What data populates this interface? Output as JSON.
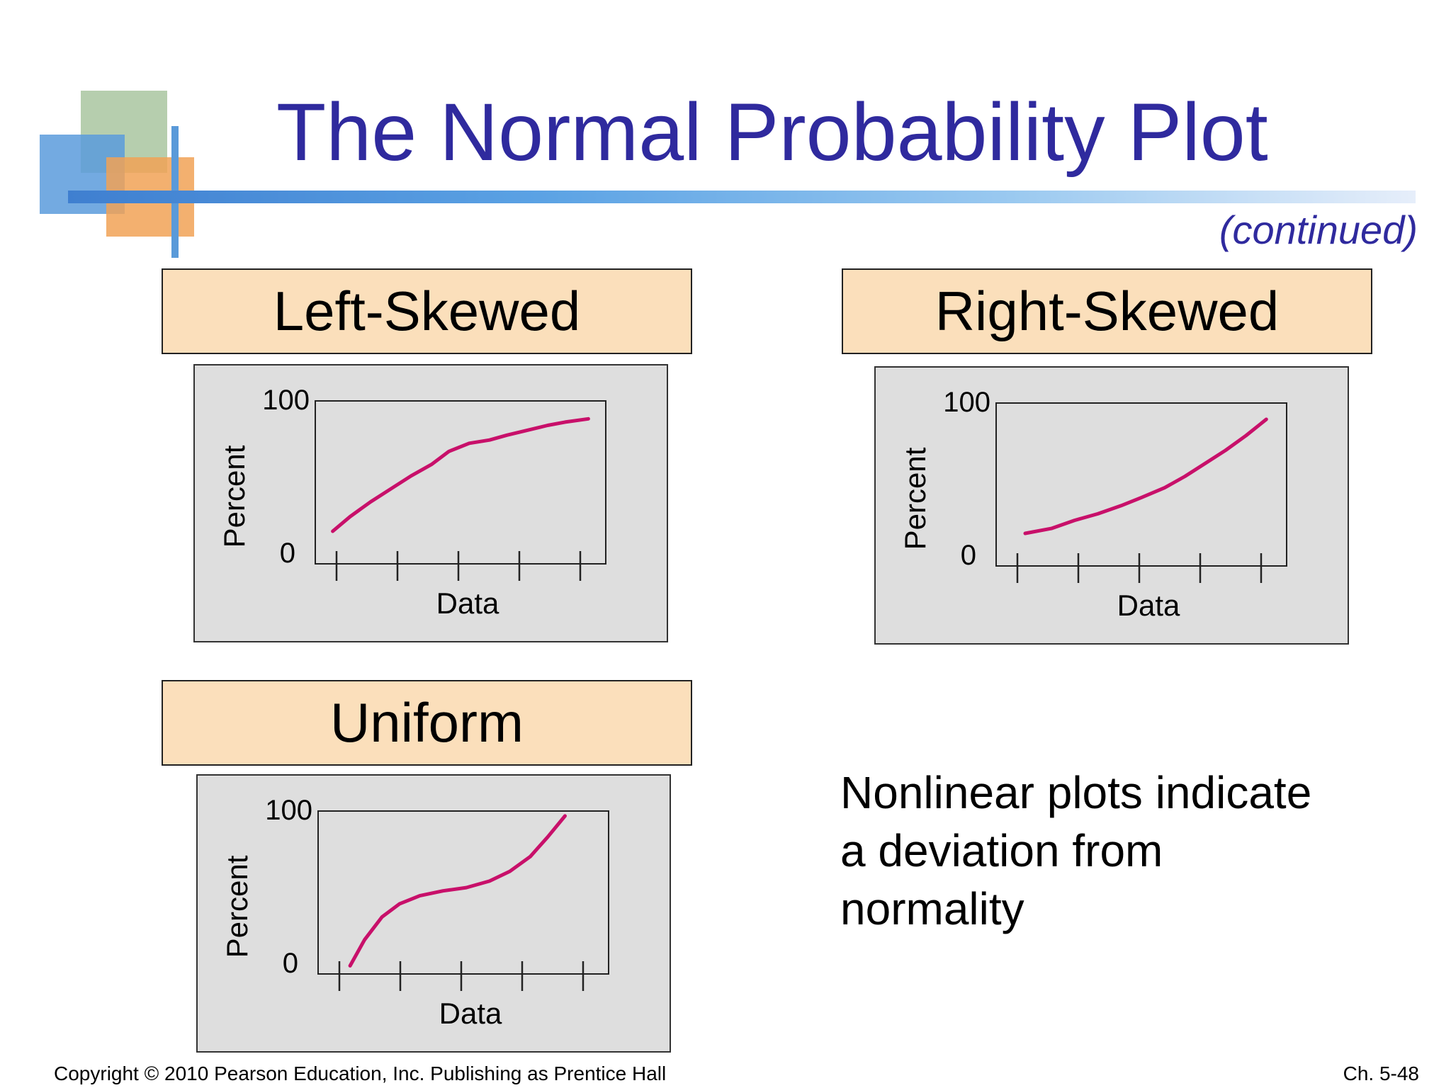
{
  "slide": {
    "title": "The Normal Probability Plot",
    "continued": "(continued)",
    "caption": "Nonlinear plots indicate a deviation from normality",
    "footer_left": "Copyright © 2010 Pearson Education, Inc. Publishing as Prentice Hall",
    "footer_right": "Ch. 5-48"
  },
  "colors": {
    "title": "#2f2a9e",
    "panel_title_bg": "#fbdfbb",
    "chart_bg": "#dedede",
    "curve": "#c8106a"
  },
  "chart_data": [
    {
      "type": "line",
      "panel_label": "Left-Skewed",
      "xlabel": "Data",
      "ylabel": "Percent",
      "yticks": [
        "100",
        "0"
      ],
      "ylim": [
        0,
        100
      ],
      "xlim": [
        0,
        10
      ],
      "x": [
        0.6,
        1.2,
        1.9,
        2.6,
        3.3,
        4.0,
        4.6,
        5.3,
        6.0,
        6.6,
        7.3,
        8.0,
        8.6,
        9.4
      ],
      "y": [
        20,
        29,
        38,
        46,
        54,
        61,
        69,
        74,
        76,
        79,
        82,
        85,
        87,
        89
      ]
    },
    {
      "type": "line",
      "panel_label": "Right-Skewed",
      "xlabel": "Data",
      "ylabel": "Percent",
      "yticks": [
        "100",
        "0"
      ],
      "ylim": [
        0,
        100
      ],
      "xlim": [
        0,
        10
      ],
      "x": [
        1.0,
        1.9,
        2.7,
        3.5,
        4.3,
        5.0,
        5.8,
        6.5,
        7.2,
        7.9,
        8.6,
        9.3
      ],
      "y": [
        20,
        23,
        28,
        32,
        37,
        42,
        48,
        55,
        63,
        71,
        80,
        90
      ]
    },
    {
      "type": "line",
      "panel_label": "Uniform",
      "xlabel": "Data",
      "ylabel": "Percent",
      "yticks": [
        "100",
        "0"
      ],
      "ylim": [
        0,
        100
      ],
      "xlim": [
        0,
        10
      ],
      "x": [
        1.1,
        1.6,
        2.2,
        2.8,
        3.5,
        4.3,
        5.1,
        5.9,
        6.6,
        7.3,
        7.9,
        8.5
      ],
      "y": [
        5,
        21,
        35,
        43,
        48,
        51,
        53,
        57,
        63,
        72,
        84,
        97
      ]
    }
  ]
}
